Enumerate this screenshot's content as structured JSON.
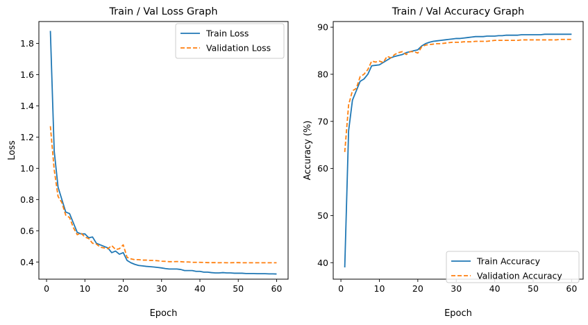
{
  "chart_data": [
    {
      "type": "line",
      "title": "Train / Val Loss Graph",
      "xlabel": "Epoch",
      "ylabel": "Loss",
      "xlim": [
        -2,
        63
      ],
      "ylim": [
        0.29,
        1.94
      ],
      "xticks": [
        0,
        10,
        20,
        30,
        40,
        50,
        60
      ],
      "yticks": [
        0.4,
        0.6,
        0.8,
        1.0,
        1.2,
        1.4,
        1.6,
        1.8
      ],
      "ytick_labels": [
        "0.4",
        "0.6",
        "0.8",
        "1.0",
        "1.2",
        "1.4",
        "1.6",
        "1.8"
      ],
      "legend_loc": "top-right",
      "x": [
        1,
        2,
        3,
        4,
        5,
        6,
        7,
        8,
        9,
        10,
        11,
        12,
        13,
        14,
        15,
        16,
        17,
        18,
        19,
        20,
        21,
        22,
        23,
        24,
        25,
        26,
        27,
        28,
        29,
        30,
        31,
        32,
        33,
        34,
        35,
        36,
        37,
        38,
        39,
        40,
        41,
        42,
        43,
        44,
        45,
        46,
        47,
        48,
        49,
        50,
        51,
        52,
        53,
        54,
        55,
        56,
        57,
        58,
        59,
        60
      ],
      "series": [
        {
          "name": "Train Loss",
          "color": "#1f77b4",
          "dash": "solid",
          "values": [
            1.88,
            1.11,
            0.88,
            0.8,
            0.72,
            0.71,
            0.65,
            0.59,
            0.58,
            0.58,
            0.555,
            0.56,
            0.52,
            0.51,
            0.5,
            0.49,
            0.46,
            0.47,
            0.45,
            0.46,
            0.41,
            0.395,
            0.385,
            0.378,
            0.375,
            0.372,
            0.37,
            0.368,
            0.365,
            0.362,
            0.358,
            0.355,
            0.355,
            0.355,
            0.352,
            0.345,
            0.345,
            0.345,
            0.34,
            0.34,
            0.335,
            0.335,
            0.332,
            0.33,
            0.33,
            0.332,
            0.33,
            0.33,
            0.328,
            0.328,
            0.328,
            0.326,
            0.326,
            0.326,
            0.325,
            0.325,
            0.325,
            0.324,
            0.324,
            0.323
          ]
        },
        {
          "name": "Validation Loss",
          "color": "#ff7f0e",
          "dash": "dashed",
          "values": [
            1.27,
            0.99,
            0.82,
            0.78,
            0.7,
            0.685,
            0.62,
            0.575,
            0.585,
            0.56,
            0.55,
            0.52,
            0.515,
            0.495,
            0.49,
            0.485,
            0.505,
            0.48,
            0.485,
            0.51,
            0.43,
            0.42,
            0.415,
            0.415,
            0.412,
            0.412,
            0.41,
            0.41,
            0.408,
            0.405,
            0.404,
            0.402,
            0.402,
            0.403,
            0.402,
            0.4,
            0.4,
            0.398,
            0.398,
            0.398,
            0.397,
            0.396,
            0.396,
            0.396,
            0.395,
            0.396,
            0.395,
            0.395,
            0.396,
            0.396,
            0.395,
            0.395,
            0.395,
            0.395,
            0.395,
            0.395,
            0.395,
            0.395,
            0.395,
            0.395
          ]
        }
      ]
    },
    {
      "type": "line",
      "title": "Train / Val Accuracy Graph",
      "xlabel": "Epoch",
      "ylabel": "Accuracy (%)",
      "xlim": [
        -2,
        63
      ],
      "ylim": [
        36.5,
        91.2
      ],
      "xticks": [
        0,
        10,
        20,
        30,
        40,
        50,
        60
      ],
      "yticks": [
        40,
        50,
        60,
        70,
        80,
        90
      ],
      "ytick_labels": [
        "40",
        "50",
        "60",
        "70",
        "80",
        "90"
      ],
      "legend_loc": "bottom-right",
      "x": [
        1,
        2,
        3,
        4,
        5,
        6,
        7,
        8,
        9,
        10,
        11,
        12,
        13,
        14,
        15,
        16,
        17,
        18,
        19,
        20,
        21,
        22,
        23,
        24,
        25,
        26,
        27,
        28,
        29,
        30,
        31,
        32,
        33,
        34,
        35,
        36,
        37,
        38,
        39,
        40,
        41,
        42,
        43,
        44,
        45,
        46,
        47,
        48,
        49,
        50,
        51,
        52,
        53,
        54,
        55,
        56,
        57,
        58,
        59,
        60
      ],
      "series": [
        {
          "name": "Train Accuracy",
          "color": "#1f77b4",
          "dash": "solid",
          "values": [
            39.0,
            68.0,
            74.5,
            76.5,
            78.5,
            79.0,
            80.0,
            81.8,
            81.9,
            82.0,
            82.5,
            83.0,
            83.5,
            83.8,
            84.0,
            84.2,
            84.6,
            84.8,
            85.0,
            85.2,
            86.0,
            86.5,
            86.8,
            87.0,
            87.1,
            87.2,
            87.3,
            87.4,
            87.5,
            87.6,
            87.6,
            87.7,
            87.8,
            87.9,
            88.0,
            88.0,
            88.0,
            88.1,
            88.1,
            88.1,
            88.2,
            88.2,
            88.3,
            88.3,
            88.3,
            88.3,
            88.4,
            88.4,
            88.4,
            88.4,
            88.4,
            88.4,
            88.5,
            88.5,
            88.5,
            88.5,
            88.5,
            88.5,
            88.5,
            88.5
          ]
        },
        {
          "name": "Validation Accuracy",
          "color": "#ff7f0e",
          "dash": "dashed",
          "values": [
            63.5,
            73.5,
            76.5,
            77.0,
            79.5,
            80.0,
            81.0,
            82.8,
            82.6,
            82.8,
            82.5,
            83.8,
            83.5,
            84.2,
            84.6,
            84.8,
            84.2,
            84.8,
            84.8,
            84.5,
            85.8,
            86.2,
            86.3,
            86.4,
            86.5,
            86.5,
            86.6,
            86.7,
            86.8,
            86.8,
            86.8,
            86.9,
            86.9,
            86.9,
            87.0,
            87.0,
            87.0,
            87.0,
            87.1,
            87.2,
            87.2,
            87.2,
            87.2,
            87.2,
            87.2,
            87.2,
            87.3,
            87.3,
            87.3,
            87.3,
            87.3,
            87.3,
            87.3,
            87.3,
            87.3,
            87.3,
            87.4,
            87.4,
            87.4,
            87.4
          ]
        }
      ]
    }
  ]
}
